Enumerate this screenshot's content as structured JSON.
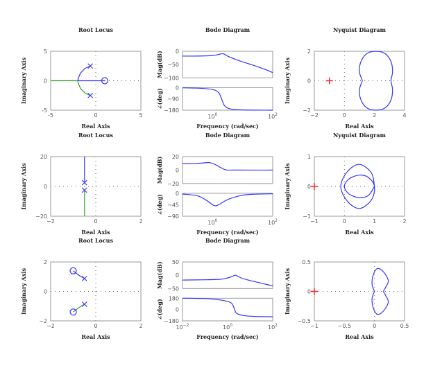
{
  "chart_data": [
    {
      "type": "scatter",
      "kind": "root-locus",
      "title": "Root Locus",
      "xlabel": "Real Axis",
      "ylabel": "Imaginary Axis",
      "xlim": [
        -5,
        5
      ],
      "ylim": [
        -5,
        5
      ],
      "xticks": [
        "-5",
        "0",
        "5"
      ],
      "yticks": [
        "-5",
        "0",
        "5"
      ],
      "poles": [
        [
          -0.6,
          2.5
        ],
        [
          -0.6,
          -2.5
        ]
      ],
      "zeros": [
        [
          1,
          0
        ]
      ],
      "branches": [
        {
          "color": "#3333ff",
          "points": [
            [
              -0.6,
              2.5
            ],
            [
              -1.2,
              2.1
            ],
            [
              -1.7,
              1.3
            ],
            [
              -1.95,
              0.4
            ],
            [
              -2,
              0
            ]
          ]
        },
        {
          "color": "#3333ff",
          "points": [
            [
              -2,
              0
            ],
            [
              1,
              0
            ]
          ]
        },
        {
          "color": "#339933",
          "points": [
            [
              -0.6,
              -2.5
            ],
            [
              -1.2,
              -2.1
            ],
            [
              -1.7,
              -1.3
            ],
            [
              -1.95,
              -0.4
            ],
            [
              -2,
              0
            ]
          ]
        },
        {
          "color": "#339933",
          "points": [
            [
              -2,
              0
            ],
            [
              -5,
              0
            ]
          ]
        }
      ]
    },
    {
      "type": "line",
      "kind": "bode",
      "title": "Bode Diagram",
      "xlabel": "Frequency (rad/sec)",
      "mag_label": "Mag(dB)",
      "phase_label": "∠(deg)",
      "xlog_range": [
        -1,
        2
      ],
      "xticks": [
        "10^0",
        "10^2"
      ],
      "xtick_exps": [
        0,
        2
      ],
      "mag_ylim": [
        -100,
        0
      ],
      "mag_yticks": [
        "0",
        "−50",
        "−100"
      ],
      "mag_ytick_vals": [
        0,
        -50,
        -100
      ],
      "phase_ylim": [
        -180,
        0
      ],
      "phase_yticks": [
        "0",
        "−90",
        "−180"
      ],
      "phase_ytick_vals": [
        0,
        -90,
        -180
      ],
      "mag": [
        [
          -1,
          -18
        ],
        [
          -0.5,
          -18
        ],
        [
          0,
          -16
        ],
        [
          0.2,
          -12
        ],
        [
          0.35,
          -9
        ],
        [
          0.5,
          -18
        ],
        [
          0.8,
          -32
        ],
        [
          1.2,
          -47
        ],
        [
          1.6,
          -62
        ],
        [
          2,
          -80
        ]
      ],
      "phase": [
        [
          -1,
          -2
        ],
        [
          -0.5,
          -5
        ],
        [
          0,
          -15
        ],
        [
          0.2,
          -40
        ],
        [
          0.3,
          -90
        ],
        [
          0.4,
          -145
        ],
        [
          0.6,
          -170
        ],
        [
          1,
          -178
        ],
        [
          2,
          -180
        ]
      ]
    },
    {
      "type": "line",
      "kind": "nyquist",
      "title": "Nyquist Diagram",
      "xlabel": "Real Axis",
      "ylabel": "Imaginary Axis",
      "xlim": [
        -2,
        4
      ],
      "ylim": [
        -2,
        2
      ],
      "xticks": [
        "−2",
        "0",
        "2",
        "4"
      ],
      "xtick_vals": [
        -2,
        0,
        2,
        4
      ],
      "yticks": [
        "2",
        "0",
        "−2"
      ],
      "ytick_vals": [
        2,
        0,
        -2
      ],
      "critical_point": [
        -1,
        0
      ],
      "curve": [
        [
          1.2,
          0
        ],
        [
          1.0,
          0.6
        ],
        [
          1.1,
          1.3
        ],
        [
          1.5,
          1.85
        ],
        [
          2.1,
          2
        ],
        [
          2.7,
          1.85
        ],
        [
          3.1,
          1.3
        ],
        [
          3.2,
          0.6
        ],
        [
          3.1,
          0
        ],
        [
          3.2,
          -0.6
        ],
        [
          3.1,
          -1.3
        ],
        [
          2.7,
          -1.85
        ],
        [
          2.1,
          -2
        ],
        [
          1.5,
          -1.85
        ],
        [
          1.1,
          -1.3
        ],
        [
          1.0,
          -0.6
        ],
        [
          1.2,
          0
        ]
      ]
    },
    {
      "type": "scatter",
      "kind": "root-locus",
      "title": "Root Locus",
      "xlabel": "Real Axis",
      "ylabel": "Imaginary Axis",
      "xlim": [
        -2,
        2
      ],
      "ylim": [
        -20,
        20
      ],
      "xticks": [
        "−2",
        "0",
        "2"
      ],
      "yticks": [
        "20",
        "0",
        "−20"
      ],
      "poles": [
        [
          -0.5,
          2.5
        ],
        [
          -0.5,
          -2.5
        ]
      ],
      "zeros": [],
      "branches": [
        {
          "color": "#3333ff",
          "points": [
            [
              -0.5,
              2.5
            ],
            [
              -0.5,
              20
            ]
          ]
        },
        {
          "color": "#339933",
          "points": [
            [
              -0.5,
              -2.5
            ],
            [
              -0.5,
              -20
            ]
          ]
        }
      ]
    },
    {
      "type": "line",
      "kind": "bode",
      "title": "Bode Diagram",
      "xlabel": "Frequency (rad/sec)",
      "mag_label": "Mag(dB)",
      "phase_label": "∠(deg)",
      "xlog_range": [
        -1,
        2
      ],
      "xticks": [
        "10^0",
        "10^2"
      ],
      "xtick_exps": [
        0,
        2
      ],
      "mag_ylim": [
        -20,
        20
      ],
      "mag_yticks": [
        "20",
        "0",
        "−20"
      ],
      "mag_ytick_vals": [
        20,
        0,
        -20
      ],
      "phase_ylim": [
        -90,
        0
      ],
      "phase_yticks": [
        "0",
        "−45",
        "−90"
      ],
      "phase_ytick_vals": [
        0,
        -45,
        -90
      ],
      "mag": [
        [
          -1,
          9.5
        ],
        [
          -0.5,
          10
        ],
        [
          -0.1,
          11
        ],
        [
          0.1,
          8
        ],
        [
          0.3,
          3
        ],
        [
          0.45,
          0.3
        ],
        [
          0.7,
          0
        ],
        [
          2,
          0
        ]
      ],
      "phase": [
        [
          -1,
          -3
        ],
        [
          -0.5,
          -10
        ],
        [
          -0.2,
          -28
        ],
        [
          0.05,
          -48
        ],
        [
          0.2,
          -45
        ],
        [
          0.5,
          -25
        ],
        [
          0.9,
          -10
        ],
        [
          1.3,
          -4
        ],
        [
          2,
          -2
        ]
      ]
    },
    {
      "type": "line",
      "kind": "nyquist",
      "title": "Nyquist Diagram",
      "xlabel": "Real Axis",
      "ylabel": "Imaginary Axis",
      "xlim": [
        -1,
        2
      ],
      "ylim": [
        -1,
        1
      ],
      "xticks": [
        "−1",
        "0",
        "1",
        "2"
      ],
      "xtick_vals": [
        -1,
        0,
        1,
        2
      ],
      "yticks": [
        "1",
        "0",
        "−1"
      ],
      "ytick_vals": [
        1,
        0,
        -1
      ],
      "critical_point": [
        -1,
        0
      ],
      "curve": [
        [
          1,
          0
        ],
        [
          0.9,
          0.45
        ],
        [
          0.5,
          0.74
        ],
        [
          0.1,
          0.5
        ],
        [
          -0.12,
          0
        ],
        [
          0.1,
          -0.5
        ],
        [
          0.5,
          -0.74
        ],
        [
          0.9,
          -0.45
        ],
        [
          1,
          0
        ],
        [
          0.8,
          0.3
        ],
        [
          0.5,
          0.38
        ],
        [
          0.15,
          0.25
        ],
        [
          0,
          0
        ],
        [
          0.15,
          -0.25
        ],
        [
          0.5,
          -0.38
        ],
        [
          0.8,
          -0.3
        ],
        [
          1,
          0
        ]
      ]
    },
    {
      "type": "scatter",
      "kind": "root-locus",
      "title": "Root Locus",
      "xlabel": "Real Axis",
      "ylabel": "Imaginary Axis",
      "xlim": [
        -2,
        2
      ],
      "ylim": [
        -2,
        2
      ],
      "xticks": [
        "−2",
        "0",
        "2"
      ],
      "yticks": [
        "2",
        "0",
        "−2"
      ],
      "poles": [
        [
          -0.5,
          0.87
        ],
        [
          -0.5,
          -0.87
        ]
      ],
      "zeros": [
        [
          -1,
          1.4
        ],
        [
          -1,
          -1.4
        ]
      ],
      "branches": [
        {
          "color": "#3333ff",
          "points": [
            [
              -0.5,
              0.87
            ],
            [
              -0.75,
              1.1
            ],
            [
              -1,
              1.4
            ]
          ]
        },
        {
          "color": "#339933",
          "points": [
            [
              -0.5,
              -0.87
            ],
            [
              -0.75,
              -1.1
            ],
            [
              -1,
              -1.4
            ]
          ]
        }
      ]
    },
    {
      "type": "line",
      "kind": "bode",
      "title": "Bode Diagram",
      "xlabel": "Frequency (rad/sec)",
      "mag_label": "Mag(dB)",
      "phase_label": "∠(deg)",
      "xlog_range": [
        -2,
        2
      ],
      "xticks": [
        "10^−2",
        "10^0",
        "10^2"
      ],
      "xtick_exps": [
        -2,
        0,
        2
      ],
      "mag_ylim": [
        -50,
        50
      ],
      "mag_yticks": [
        "50",
        "0",
        "−50"
      ],
      "mag_ytick_vals": [
        50,
        0,
        -50
      ],
      "phase_ylim": [
        -180,
        180
      ],
      "phase_yticks": [
        "180",
        "0",
        "−180"
      ],
      "phase_ytick_vals": [
        180,
        0,
        -180
      ],
      "mag": [
        [
          -2,
          -18
        ],
        [
          -1,
          -17
        ],
        [
          -0.3,
          -15
        ],
        [
          0,
          -10
        ],
        [
          0.2,
          -5
        ],
        [
          0.35,
          0
        ],
        [
          0.6,
          -10
        ],
        [
          1,
          -20
        ],
        [
          1.5,
          -30
        ],
        [
          2,
          -40
        ]
      ],
      "phase": [
        [
          -2,
          180
        ],
        [
          -1,
          175
        ],
        [
          -0.5,
          160
        ],
        [
          0,
          130
        ],
        [
          0.2,
          90
        ],
        [
          0.3,
          10
        ],
        [
          0.4,
          -60
        ],
        [
          0.7,
          -95
        ],
        [
          1.2,
          -110
        ],
        [
          2,
          -115
        ]
      ]
    },
    {
      "type": "line",
      "kind": "nyquist",
      "title": "",
      "xlabel": "Real Axis",
      "ylabel": "Imaginary Axis",
      "xlim": [
        -1,
        0.5
      ],
      "ylim": [
        -0.5,
        0.5
      ],
      "xticks": [
        "−1",
        "−0.5",
        "0",
        "0.5"
      ],
      "xtick_vals": [
        -1,
        -0.5,
        0,
        0.5
      ],
      "yticks": [
        "0.5",
        "0",
        "−0.5"
      ],
      "ytick_vals": [
        0.5,
        0,
        -0.5
      ],
      "critical_point": [
        -1,
        0
      ],
      "curve": [
        [
          0,
          0
        ],
        [
          -0.04,
          0.12
        ],
        [
          -0.02,
          0.28
        ],
        [
          0.05,
          0.39
        ],
        [
          0.15,
          0.33
        ],
        [
          0.23,
          0.18
        ],
        [
          0.18,
          0.06
        ],
        [
          0.15,
          0
        ],
        [
          0.18,
          -0.06
        ],
        [
          0.23,
          -0.18
        ],
        [
          0.15,
          -0.33
        ],
        [
          0.05,
          -0.39
        ],
        [
          -0.02,
          -0.28
        ],
        [
          -0.04,
          -0.12
        ],
        [
          0,
          0
        ]
      ]
    }
  ]
}
